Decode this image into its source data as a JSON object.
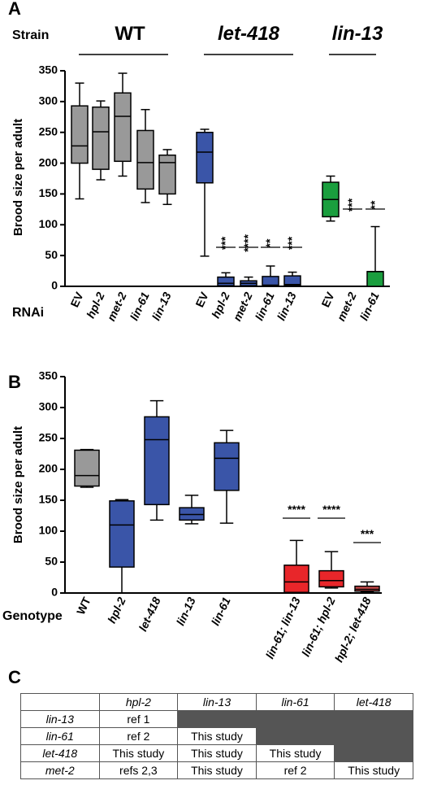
{
  "panel_a": {
    "letter": "A",
    "strain_label": "Strain",
    "rnai_label": "RNAi",
    "groups": [
      "WT",
      "let-418",
      "lin-13"
    ]
  },
  "panel_b": {
    "letter": "B",
    "genotype_label": "Genotype"
  },
  "panel_c": {
    "letter": "C",
    "headers": [
      "",
      "hpl-2",
      "lin-13",
      "lin-61",
      "let-418"
    ],
    "rows": [
      {
        "label": "lin-13",
        "cells": [
          "ref 1",
          "",
          "",
          ""
        ]
      },
      {
        "label": "lin-61",
        "cells": [
          "ref 2",
          "This study",
          "",
          ""
        ]
      },
      {
        "label": "let-418",
        "cells": [
          "This study",
          "This study",
          "This study",
          ""
        ]
      },
      {
        "label": "met-2",
        "cells": [
          "refs 2,3",
          "This study",
          "ref 2",
          "This study"
        ]
      }
    ],
    "shaded": [
      [
        0,
        1
      ],
      [
        0,
        2
      ],
      [
        0,
        3
      ],
      [
        1,
        2
      ],
      [
        1,
        3
      ],
      [
        2,
        3
      ]
    ]
  },
  "colors": {
    "grey": "#999999",
    "blue": "#3a55a8",
    "green": "#1a9e3e",
    "red": "#e8262a",
    "darkred": "#c94a4a"
  },
  "chart_data": [
    {
      "type": "box",
      "ylabel": "Brood size per adult",
      "ylim": [
        0,
        350
      ],
      "yticks": [
        0,
        50,
        100,
        150,
        200,
        250,
        300,
        350
      ],
      "series": [
        {
          "label": "EV",
          "italic": false,
          "color": "grey",
          "min": 142,
          "q1": 200,
          "median": 228,
          "q3": 293,
          "max": 330
        },
        {
          "label": "hpl-2",
          "italic": true,
          "color": "grey",
          "min": 173,
          "q1": 190,
          "median": 251,
          "q3": 291,
          "max": 301
        },
        {
          "label": "met-2",
          "italic": true,
          "color": "grey",
          "min": 179,
          "q1": 203,
          "median": 276,
          "q3": 314,
          "max": 346
        },
        {
          "label": "lin-61",
          "italic": true,
          "color": "grey",
          "min": 136,
          "q1": 158,
          "median": 201,
          "q3": 253,
          "max": 287
        },
        {
          "label": "lin-13",
          "italic": true,
          "color": "grey",
          "min": 133,
          "q1": 150,
          "median": 201,
          "q3": 213,
          "max": 222
        },
        {
          "label": "EV",
          "italic": false,
          "color": "blue",
          "min": 49,
          "q1": 168,
          "median": 218,
          "q3": 250,
          "max": 255
        },
        {
          "label": "hpl-2",
          "italic": true,
          "color": "blue",
          "min": 0,
          "q1": 1,
          "median": 5,
          "q3": 15,
          "max": 22,
          "sig": "***"
        },
        {
          "label": "met-2",
          "italic": true,
          "color": "blue",
          "min": 0,
          "q1": 1,
          "median": 5,
          "q3": 9,
          "max": 15,
          "sig": "****"
        },
        {
          "label": "lin-61",
          "italic": true,
          "color": "blue",
          "min": 0,
          "q1": 1,
          "median": 2,
          "q3": 16,
          "max": 33,
          "sig": "**"
        },
        {
          "label": "lin-13",
          "italic": true,
          "color": "blue",
          "min": 0,
          "q1": 1,
          "median": 3,
          "q3": 17,
          "max": 23,
          "sig": "***"
        },
        {
          "label": "EV",
          "italic": false,
          "color": "green",
          "min": 106,
          "q1": 113,
          "median": 141,
          "q3": 169,
          "max": 179
        },
        {
          "label": "met-2",
          "italic": true,
          "color": "green",
          "min": 0,
          "q1": 0,
          "median": 0,
          "q3": 0,
          "max": 0,
          "sig": "***"
        },
        {
          "label": "lin-61",
          "italic": true,
          "color": "green",
          "min": 0,
          "q1": 0,
          "median": 24,
          "q3": 24,
          "max": 97,
          "sig": "**"
        }
      ]
    },
    {
      "type": "box",
      "ylabel": "Brood size per adult",
      "ylim": [
        0,
        350
      ],
      "yticks": [
        0,
        50,
        100,
        150,
        200,
        250,
        300,
        350
      ],
      "series": [
        {
          "label": "WT",
          "italic": false,
          "color": "grey",
          "min": 171,
          "q1": 173,
          "median": 190,
          "q3": 231,
          "max": 232
        },
        {
          "label": "hpl-2",
          "italic": true,
          "color": "blue",
          "min": 0,
          "q1": 42,
          "median": 110,
          "q3": 149,
          "max": 151
        },
        {
          "label": "let-418",
          "italic": true,
          "color": "blue",
          "min": 118,
          "q1": 143,
          "median": 248,
          "q3": 285,
          "max": 311
        },
        {
          "label": "lin-13",
          "italic": true,
          "color": "blue",
          "min": 112,
          "q1": 118,
          "median": 127,
          "q3": 138,
          "max": 158
        },
        {
          "label": "lin-61",
          "italic": true,
          "color": "blue",
          "min": 113,
          "q1": 166,
          "median": 218,
          "q3": 243,
          "max": 263
        },
        {
          "label": "lin-61; lin-13",
          "italic": true,
          "color": "red",
          "min": 0,
          "q1": 1,
          "median": 18,
          "q3": 45,
          "max": 85,
          "sig": "****"
        },
        {
          "label": "lin-61; hpl-2",
          "italic": true,
          "color": "red",
          "min": 8,
          "q1": 10,
          "median": 20,
          "q3": 36,
          "max": 67,
          "sig": "****"
        },
        {
          "label": "hpl-2; let-418",
          "italic": true,
          "color": "darkred",
          "min": 1,
          "q1": 3,
          "median": 6,
          "q3": 11,
          "max": 18,
          "sig": "***"
        }
      ]
    }
  ]
}
